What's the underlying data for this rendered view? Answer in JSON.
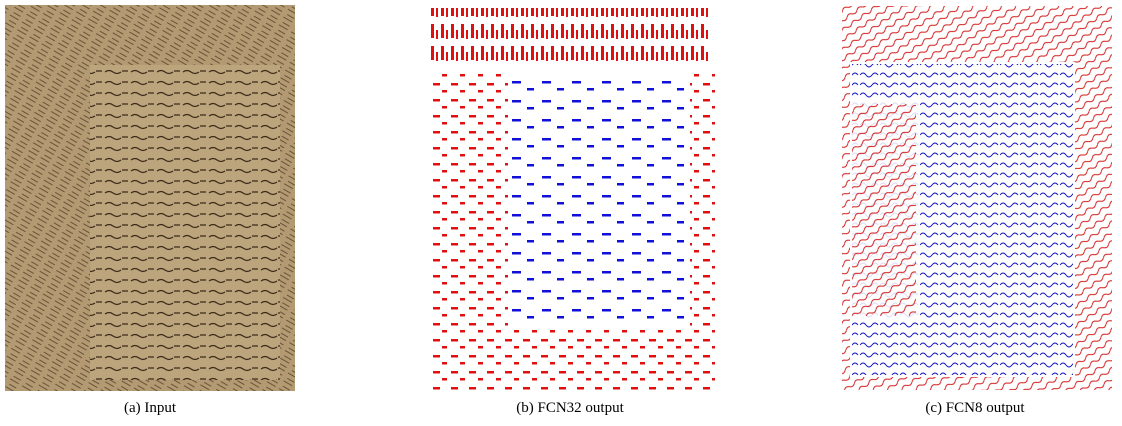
{
  "figures": [
    {
      "caption": "(a) Input"
    },
    {
      "caption": "(b) FCN32 output"
    },
    {
      "caption": "(c) FCN8 output"
    }
  ]
}
